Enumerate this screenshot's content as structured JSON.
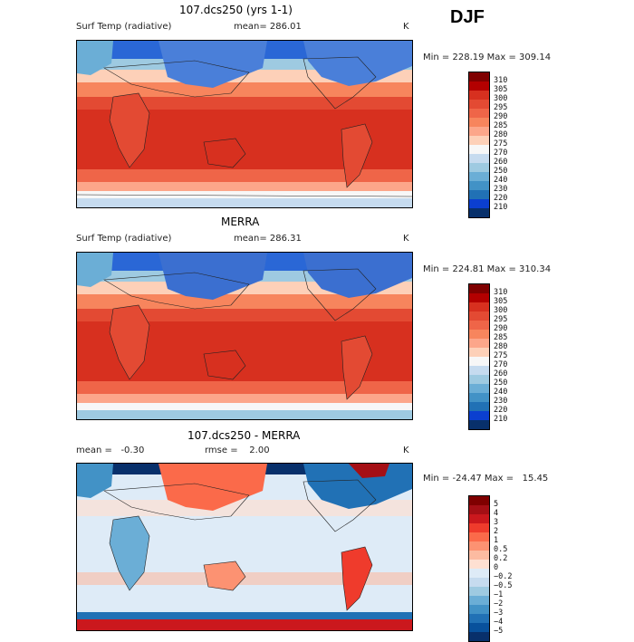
{
  "season": "DJF",
  "panels": [
    {
      "title": "107.dcs250 (yrs 1-1)",
      "variable": "Surf Temp (radiative)",
      "mean_text": "mean= 286.01",
      "unit": "K",
      "minmax": "Min = 228.19 Max = 309.14",
      "map_type": "absolute"
    },
    {
      "title": "MERRA",
      "variable": "Surf Temp (radiative)",
      "mean_text": "mean= 286.31",
      "unit": "K",
      "minmax": "Min = 224.81 Max = 310.34",
      "map_type": "absolute"
    },
    {
      "title": "107.dcs250 - MERRA",
      "mean_text": "mean =   -0.30",
      "rmse_text": "rmse =    2.00",
      "unit": "K",
      "minmax": "Min = -24.47 Max =   15.45",
      "map_type": "difference"
    }
  ],
  "colorbar_abs": {
    "labels": [
      "310",
      "305",
      "300",
      "295",
      "290",
      "285",
      "280",
      "275",
      "270",
      "260",
      "250",
      "240",
      "230",
      "220",
      "210"
    ],
    "colors": [
      "#7f0000",
      "#b30000",
      "#d7301f",
      "#e34a33",
      "#ef6548",
      "#f7855d",
      "#fca68a",
      "#fdd0b8",
      "#f7f7f7",
      "#c6dbef",
      "#9ecae1",
      "#6baed6",
      "#4292c6",
      "#2171b5",
      "#0b3fd0",
      "#08306b"
    ]
  },
  "colorbar_diff": {
    "labels": [
      "5",
      "4",
      "3",
      "2",
      "1",
      "0.5",
      "0.2",
      "0",
      "−0.2",
      "−0.5",
      "−1",
      "−2",
      "−3",
      "−4",
      "−5"
    ],
    "colors": [
      "#7f0000",
      "#a50f15",
      "#cb181d",
      "#ef3b2c",
      "#fb6a4a",
      "#fc9272",
      "#fcbba1",
      "#fee0d2",
      "#deebf7",
      "#c6dbef",
      "#9ecae1",
      "#6baed6",
      "#4292c6",
      "#2171b5",
      "#08519c",
      "#08306b"
    ]
  }
}
